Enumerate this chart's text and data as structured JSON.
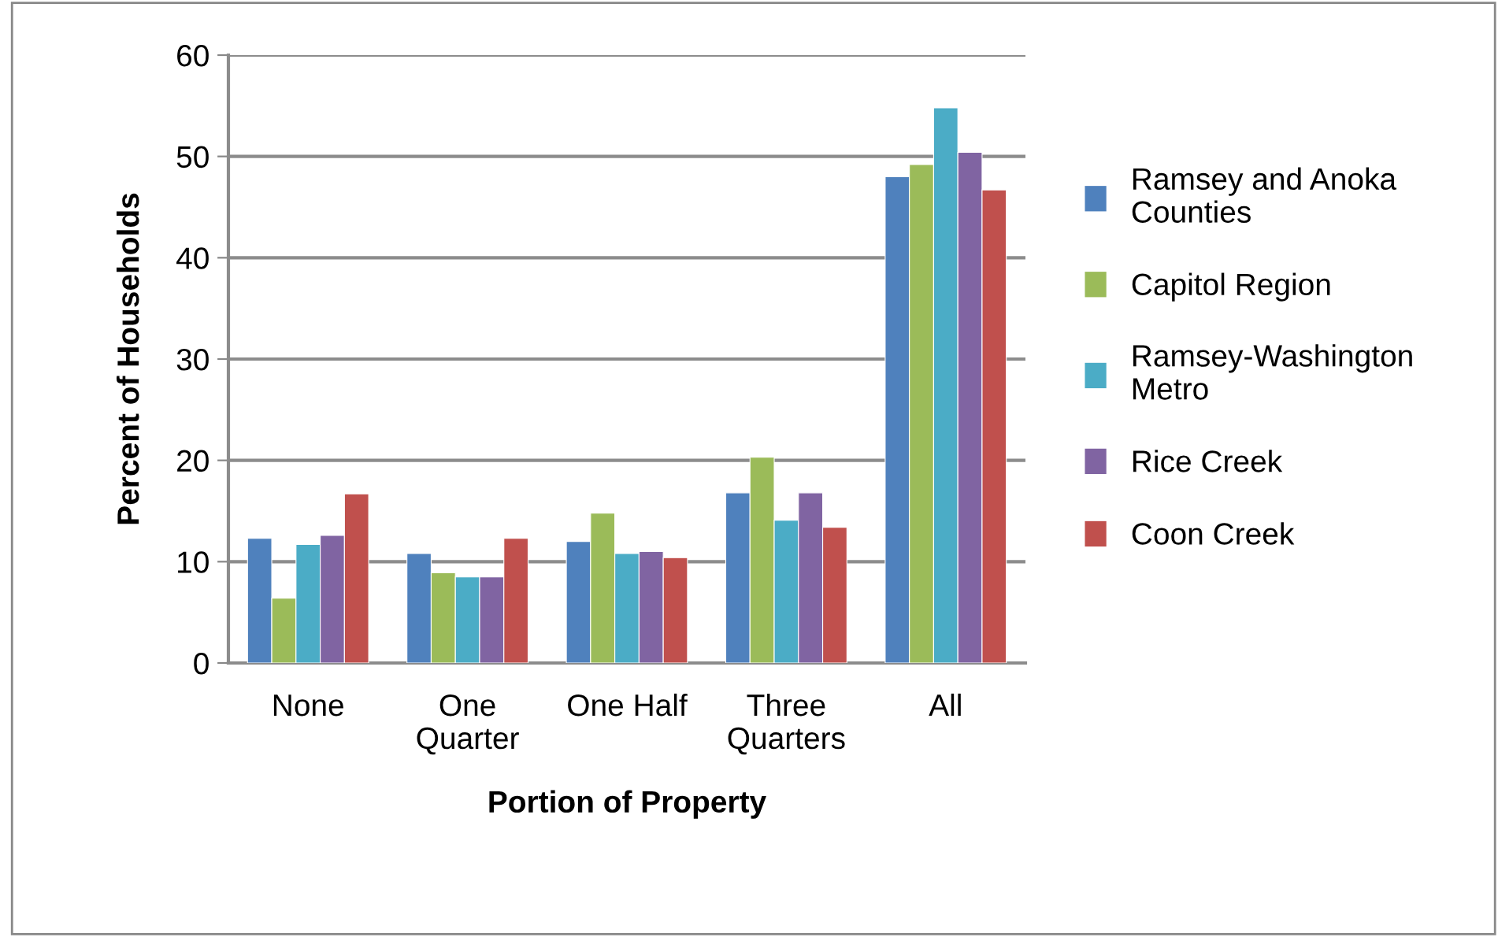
{
  "chart_data": {
    "type": "bar",
    "xlabel": "Portion of Property",
    "ylabel": "Percent of Households",
    "categories": [
      "None",
      "One Quarter",
      "One Half",
      "Three Quarters",
      "All"
    ],
    "series": [
      {
        "name": "Ramsey and Anoka Counties",
        "color": "#4f81bd",
        "values": [
          12.3,
          10.8,
          12.0,
          16.8,
          48.0
        ]
      },
      {
        "name": "Capitol Region",
        "color": "#9bbb59",
        "values": [
          6.4,
          8.9,
          14.8,
          20.3,
          49.2
        ]
      },
      {
        "name": "Ramsey-Washington Metro",
        "color": "#4bacc6",
        "values": [
          11.7,
          8.5,
          10.8,
          14.1,
          54.8
        ]
      },
      {
        "name": "Rice Creek",
        "color": "#8064a2",
        "values": [
          12.6,
          8.5,
          11.0,
          16.8,
          50.4
        ]
      },
      {
        "name": "Coon Creek",
        "color": "#c0504d",
        "values": [
          16.7,
          12.3,
          10.4,
          13.4,
          46.7
        ]
      }
    ],
    "ylim": [
      0,
      60
    ],
    "yticks": [
      0,
      10,
      20,
      30,
      40,
      50,
      60
    ],
    "grid": "y",
    "legend": "right"
  }
}
